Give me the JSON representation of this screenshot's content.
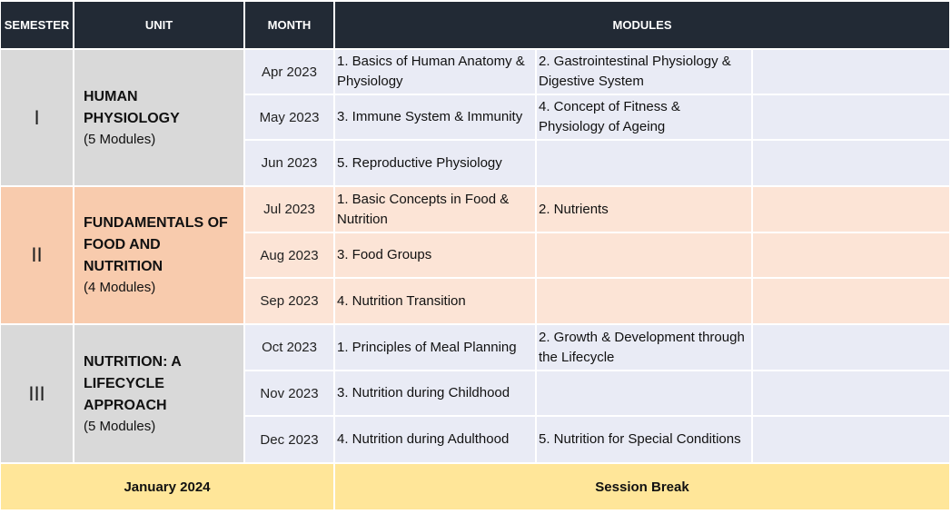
{
  "header": {
    "semester": "SEMESTER",
    "unit": "UNIT",
    "month": "MONTH",
    "modules": "MODULES"
  },
  "semesters": [
    {
      "numeral": "I",
      "unit_name": "HUMAN\nPHYSIOLOGY",
      "module_count": "(5 Modules)",
      "rows": [
        {
          "month": "Apr 2023",
          "m1": "1. Basics of Human Anatomy & Physiology",
          "m2": "2. Gastrointestinal Physiology & Digestive System"
        },
        {
          "month": "May 2023",
          "m1": "3. Immune System & Immunity",
          "m2": "4. Concept of Fitness & Physiology of Ageing"
        },
        {
          "month": "Jun 2023",
          "m1": "5. Reproductive Physiology",
          "m2": ""
        }
      ]
    },
    {
      "numeral": "II",
      "unit_name": "FUNDAMENTALS OF\nFOOD AND\nNUTRITION",
      "module_count": "(4 Modules)",
      "rows": [
        {
          "month": "Jul 2023",
          "m1": "1. Basic Concepts in Food & Nutrition",
          "m2": "2. Nutrients"
        },
        {
          "month": "Aug 2023",
          "m1": "3. Food Groups",
          "m2": ""
        },
        {
          "month": "Sep 2023",
          "m1": "4. Nutrition Transition",
          "m2": ""
        }
      ]
    },
    {
      "numeral": "III",
      "unit_name": "NUTRITION: A\nLIFECYCLE\nAPPROACH",
      "module_count": "(5 Modules)",
      "rows": [
        {
          "month": "Oct 2023",
          "m1": "1. Principles of Meal Planning",
          "m2": "2. Growth & Development through the Lifecycle"
        },
        {
          "month": "Nov 2023",
          "m1": "3. Nutrition during Childhood",
          "m2": ""
        },
        {
          "month": "Dec 2023",
          "m1": "4. Nutrition during Adulthood",
          "m2": "5. Nutrition for Special Conditions"
        }
      ]
    }
  ],
  "footer": {
    "month": "January 2024",
    "label": "Session Break"
  },
  "colors": {
    "header_bg": "#222a35",
    "grey_band": "#d9d9d9",
    "peach_band": "#f8cbad",
    "row_blue": "#e9ebf5",
    "row_peach": "#fce4d6",
    "footer_yellow": "#ffe699"
  }
}
